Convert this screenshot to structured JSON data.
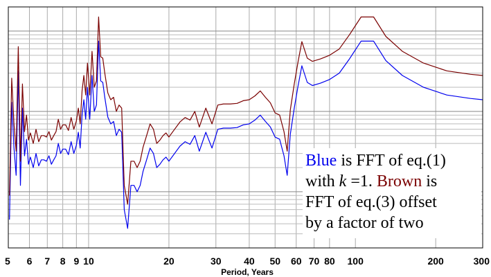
{
  "chart_data": {
    "type": "line",
    "xlabel": "Period, Years",
    "xscale": "log",
    "xlim": [
      5,
      300
    ],
    "xticks": [
      5,
      6,
      7,
      8,
      9,
      10,
      20,
      30,
      40,
      50,
      60,
      70,
      80,
      100,
      200,
      300
    ],
    "xtick_labels": [
      "5",
      "6",
      "7",
      "8",
      "9",
      "10",
      "20",
      "30",
      "40",
      "50",
      "60",
      "70",
      "80",
      "100",
      "200",
      "300"
    ],
    "yscale": "log",
    "ylim": [
      0.02,
      20
    ],
    "grid": true,
    "legend_text": {
      "blue_word": "Blue",
      "line1_rest": " is FFT of eq.(1)",
      "line2_start": "with ",
      "k_symbol": "k",
      "line2_mid": " =1. ",
      "brown_word": "Brown",
      "line2_end": " is",
      "line3": "FFT of eq.(3) offset",
      "line4": "by a factor of two"
    },
    "series": [
      {
        "color": "#0000ee",
        "x": [
          5.05,
          5.15,
          5.25,
          5.35,
          5.45,
          5.55,
          5.65,
          5.75,
          5.85,
          5.95,
          6.05,
          6.2,
          6.35,
          6.5,
          6.65,
          6.8,
          6.95,
          7.1,
          7.25,
          7.4,
          7.55,
          7.7,
          7.85,
          8.0,
          8.2,
          8.4,
          8.6,
          8.8,
          9.0,
          9.15,
          9.3,
          9.45,
          9.6,
          9.75,
          9.9,
          10.1,
          10.3,
          10.5,
          10.7,
          10.9,
          11.1,
          11.3,
          11.5,
          11.8,
          12.1,
          12.4,
          12.7,
          13.0,
          13.3,
          13.6,
          14.0,
          14.4,
          14.8,
          15.2,
          15.6,
          16.0,
          16.5,
          17.0,
          17.5,
          18.0,
          18.5,
          19.0,
          19.5,
          20.0,
          21.0,
          22.0,
          23.0,
          24.0,
          25.0,
          26.0,
          27.5,
          29.0,
          30.5,
          32.0,
          34.0,
          36.0,
          38.0,
          40.0,
          42.0,
          44.0,
          46.0,
          48.0,
          50.0,
          52.0,
          54.0,
          55.5,
          57.0,
          59.0,
          61.0,
          63.0,
          66.0,
          69.0,
          74.0,
          80.0,
          87.0,
          95.0,
          105.0,
          117.0,
          130.0,
          150.0,
          180.0,
          220.0,
          270.0,
          300.0
        ],
        "y": [
          0.045,
          1.3,
          0.35,
          0.16,
          3.2,
          0.12,
          1.1,
          0.28,
          0.45,
          0.22,
          0.27,
          0.2,
          0.3,
          0.21,
          0.25,
          0.25,
          0.24,
          0.28,
          0.22,
          0.25,
          0.28,
          0.4,
          0.3,
          0.34,
          0.34,
          0.29,
          0.42,
          0.3,
          0.38,
          0.55,
          0.35,
          0.9,
          1.4,
          0.8,
          2.0,
          0.8,
          2.8,
          1.0,
          1.2,
          7.5,
          2.4,
          2.3,
          1.5,
          0.85,
          0.7,
          0.75,
          0.5,
          0.6,
          0.55,
          0.06,
          0.035,
          0.12,
          0.12,
          0.1,
          0.12,
          0.18,
          0.25,
          0.35,
          0.3,
          0.2,
          0.22,
          0.25,
          0.27,
          0.24,
          0.3,
          0.37,
          0.42,
          0.39,
          0.5,
          0.32,
          0.55,
          0.35,
          0.6,
          0.62,
          0.62,
          0.63,
          0.68,
          0.7,
          0.78,
          0.9,
          0.75,
          0.64,
          0.48,
          0.45,
          0.28,
          0.16,
          0.52,
          1.1,
          2.1,
          3.7,
          2.3,
          2.1,
          2.25,
          2.5,
          3.0,
          4.5,
          7.5,
          7.5,
          4.3,
          2.8,
          2.0,
          1.6,
          1.45,
          1.4
        ]
      },
      {
        "color": "#7a0000",
        "x": [
          5.05,
          5.15,
          5.25,
          5.35,
          5.45,
          5.55,
          5.65,
          5.75,
          5.85,
          5.95,
          6.05,
          6.2,
          6.35,
          6.5,
          6.65,
          6.8,
          6.95,
          7.1,
          7.25,
          7.4,
          7.55,
          7.7,
          7.85,
          8.0,
          8.2,
          8.4,
          8.6,
          8.8,
          9.0,
          9.15,
          9.3,
          9.45,
          9.6,
          9.75,
          9.9,
          10.1,
          10.3,
          10.5,
          10.7,
          10.9,
          11.1,
          11.3,
          11.5,
          11.8,
          12.1,
          12.4,
          12.7,
          13.0,
          13.3,
          13.6,
          14.0,
          14.4,
          14.8,
          15.2,
          15.6,
          16.0,
          16.5,
          17.0,
          17.5,
          18.0,
          18.5,
          19.0,
          19.5,
          20.0,
          21.0,
          22.0,
          23.0,
          24.0,
          25.0,
          26.0,
          27.5,
          29.0,
          30.5,
          32.0,
          34.0,
          36.0,
          38.0,
          40.0,
          42.0,
          44.0,
          46.0,
          48.0,
          50.0,
          52.0,
          54.0,
          55.5,
          57.0,
          59.0,
          61.0,
          63.0,
          66.0,
          69.0,
          74.0,
          80.0,
          87.0,
          95.0,
          105.0,
          117.0,
          130.0,
          150.0,
          180.0,
          220.0,
          270.0,
          300.0
        ],
        "y": [
          0.09,
          2.6,
          0.7,
          0.32,
          6.4,
          0.24,
          2.2,
          0.56,
          0.9,
          0.44,
          0.54,
          0.4,
          0.6,
          0.42,
          0.5,
          0.5,
          0.48,
          0.56,
          0.44,
          0.5,
          0.56,
          0.8,
          0.6,
          0.68,
          0.68,
          0.58,
          0.84,
          0.6,
          0.76,
          1.1,
          0.7,
          1.8,
          2.8,
          1.6,
          4.0,
          1.6,
          5.6,
          2.0,
          2.4,
          15.0,
          4.8,
          4.6,
          3.0,
          1.7,
          1.4,
          1.5,
          1.0,
          1.2,
          1.1,
          0.12,
          0.07,
          0.24,
          0.24,
          0.2,
          0.24,
          0.36,
          0.5,
          0.7,
          0.6,
          0.4,
          0.44,
          0.5,
          0.54,
          0.48,
          0.6,
          0.74,
          0.84,
          0.78,
          1.0,
          0.64,
          1.1,
          0.7,
          1.2,
          1.24,
          1.24,
          1.26,
          1.36,
          1.4,
          1.56,
          1.8,
          1.5,
          1.28,
          0.96,
          0.9,
          0.56,
          0.32,
          1.04,
          2.2,
          4.2,
          7.4,
          4.6,
          4.2,
          4.5,
          5.0,
          6.0,
          9.0,
          15.0,
          15.0,
          8.6,
          5.6,
          4.0,
          3.2,
          2.9,
          2.8
        ]
      }
    ]
  }
}
